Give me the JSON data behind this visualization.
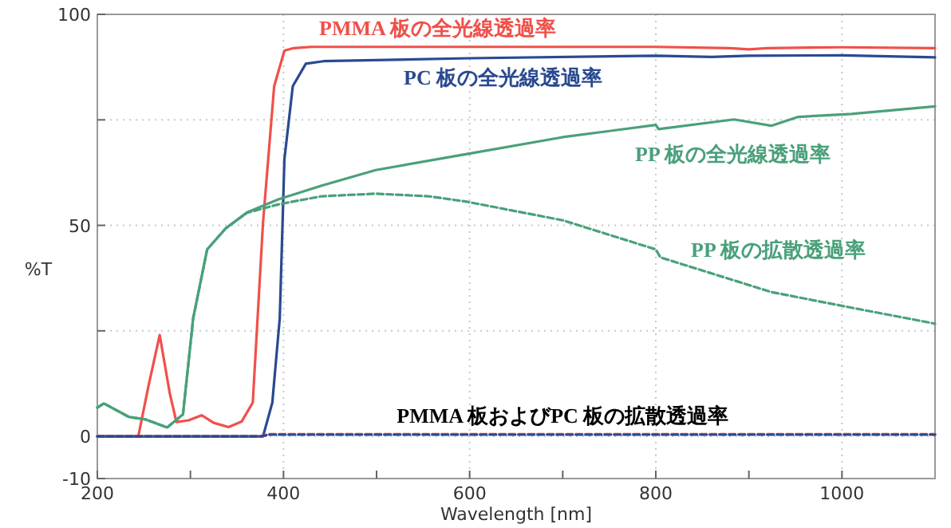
{
  "chart_data": {
    "type": "line",
    "xlabel": "Wavelength [nm]",
    "ylabel": "%T",
    "xlim": [
      200,
      1100
    ],
    "ylim": [
      -10,
      100
    ],
    "xticks": [
      200,
      {
        "value": 300,
        "label": null
      },
      400,
      {
        "value": 500,
        "label": null
      },
      600,
      {
        "value": 700,
        "label": null
      },
      800,
      {
        "value": 900,
        "label": null
      },
      1000
    ],
    "yticks": [
      -10,
      0,
      {
        "value": 25,
        "label": null
      },
      50,
      {
        "value": 75,
        "label": null
      },
      100
    ],
    "grid": true,
    "marker": "none",
    "series": [
      {
        "name": "PMMA 板の全光線透過率",
        "color": "#f0504a",
        "line_style": "solid",
        "x": [
          200,
          244,
          255,
          267,
          278,
          285,
          298,
          312,
          325,
          341,
          355,
          367,
          378,
          390,
          401,
          411,
          430,
          600,
          800,
          880,
          900,
          920,
          1000,
          1100
        ],
        "values": [
          0,
          0,
          12,
          24,
          10,
          3.4,
          3.8,
          5.0,
          3.2,
          2.2,
          3.5,
          8,
          50.6,
          83,
          91.4,
          92,
          92.3,
          92.3,
          92.3,
          92,
          91.7,
          92,
          92.2,
          92
        ]
      },
      {
        "name": "PC 板の全光線透過率",
        "color": "#2a4a90",
        "line_style": "solid",
        "x": [
          200,
          378,
          388,
          396,
          401,
          410,
          424,
          443,
          600,
          800,
          860,
          900,
          1000,
          1100
        ],
        "values": [
          0,
          0,
          8,
          28,
          65.7,
          83,
          88.3,
          88.9,
          89.6,
          90.2,
          89.9,
          90.2,
          90.3,
          89.8
        ]
      },
      {
        "name": "PP 板の全光線透過率",
        "color": "#4aa07a",
        "line_style": "solid",
        "x": [
          200,
          207,
          234,
          252,
          275,
          292,
          303,
          318,
          338,
          361,
          395,
          441,
          499,
          597,
          700,
          800,
          803,
          884,
          924,
          953,
          1010,
          1100
        ],
        "values": [
          6.8,
          7.8,
          4.6,
          4.0,
          2.1,
          5.2,
          28,
          44.3,
          49.3,
          53.1,
          56.2,
          59.4,
          63.1,
          66.9,
          70.9,
          73.8,
          72.8,
          75.1,
          73.6,
          75.7,
          76.4,
          78.2
        ]
      },
      {
        "name": "PP 板の拡散透過率",
        "color": "#4aa07a",
        "line_style": "dashed",
        "x": [
          200,
          207,
          234,
          252,
          275,
          292,
          303,
          318,
          338,
          361,
          395,
          441,
          499,
          556,
          597,
          700,
          800,
          805,
          924,
          1010,
          1100
        ],
        "values": [
          6.8,
          7.8,
          4.6,
          4.0,
          2.1,
          5.2,
          28,
          44.3,
          49.3,
          53,
          55,
          56.9,
          57.5,
          56.9,
          55.6,
          51.2,
          44.3,
          42.4,
          34.2,
          30.5,
          26.7
        ]
      },
      {
        "color": "#f0504a",
        "line_style": "dashed",
        "x": [
          200,
          375,
          385,
          1100
        ],
        "values": [
          0,
          0,
          0.5,
          0.5
        ]
      },
      {
        "color": "#2a4a90",
        "line_style": "dashed",
        "x": [
          200,
          375,
          385,
          1100
        ],
        "values": [
          0,
          0,
          0.4,
          0.4
        ]
      }
    ],
    "annotations": [
      {
        "text": "PMMA 板およびPC 板の拡散透過率",
        "x": 700,
        "y": 0.5
      }
    ]
  }
}
